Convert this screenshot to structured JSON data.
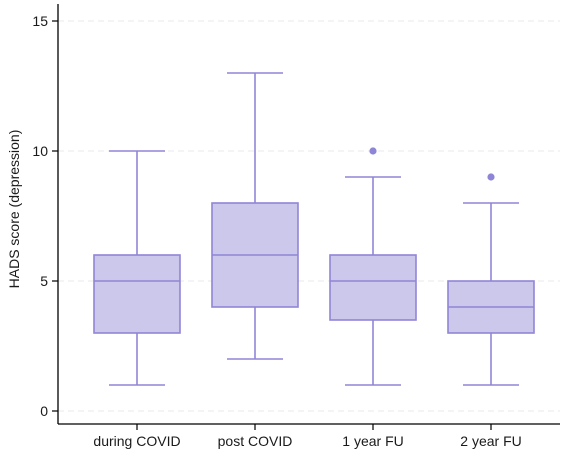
{
  "chart_data": {
    "type": "box",
    "ylabel": "HADS score (depression)",
    "ylim": [
      0,
      15.5
    ],
    "yticks": [
      0,
      5,
      10,
      15
    ],
    "grid": true,
    "colors": {
      "fill": "#ccc8eb",
      "stroke": "#8f85d6",
      "outlier": "#8f85d6"
    },
    "categories": [
      "during COVID",
      "post COVID",
      "1 year FU",
      "2 year FU"
    ],
    "boxes": [
      {
        "category": "during COVID",
        "min": 1,
        "q1": 3,
        "median": 5,
        "q3": 6,
        "max": 10,
        "outliers": []
      },
      {
        "category": "post COVID",
        "min": 2,
        "q1": 4,
        "median": 6,
        "q3": 8,
        "max": 13,
        "outliers": []
      },
      {
        "category": "1 year FU",
        "min": 1,
        "q1": 3.5,
        "median": 5,
        "q3": 6,
        "max": 9,
        "outliers": [
          10
        ]
      },
      {
        "category": "2 year FU",
        "min": 1,
        "q1": 3,
        "median": 4,
        "q3": 5,
        "max": 8,
        "outliers": [
          9
        ]
      }
    ]
  }
}
